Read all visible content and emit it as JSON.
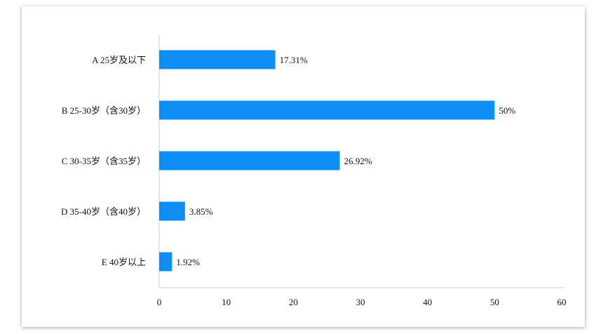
{
  "chart_data": {
    "type": "bar",
    "orientation": "horizontal",
    "categories": [
      "A 25岁及以下",
      "B 25-30岁（含30岁）",
      "C 30-35岁（含35岁）",
      "D 35-40岁（含40岁）",
      "E 40岁以上"
    ],
    "values": [
      17.31,
      50,
      26.92,
      3.85,
      1.92
    ],
    "value_labels": [
      "17.31%",
      "50%",
      "26.92%",
      "3.85%",
      "1.92%"
    ],
    "color": "#0e8ef2",
    "xlim": [
      0,
      60
    ],
    "xticks": [
      0,
      10,
      20,
      30,
      40,
      50,
      60
    ]
  }
}
